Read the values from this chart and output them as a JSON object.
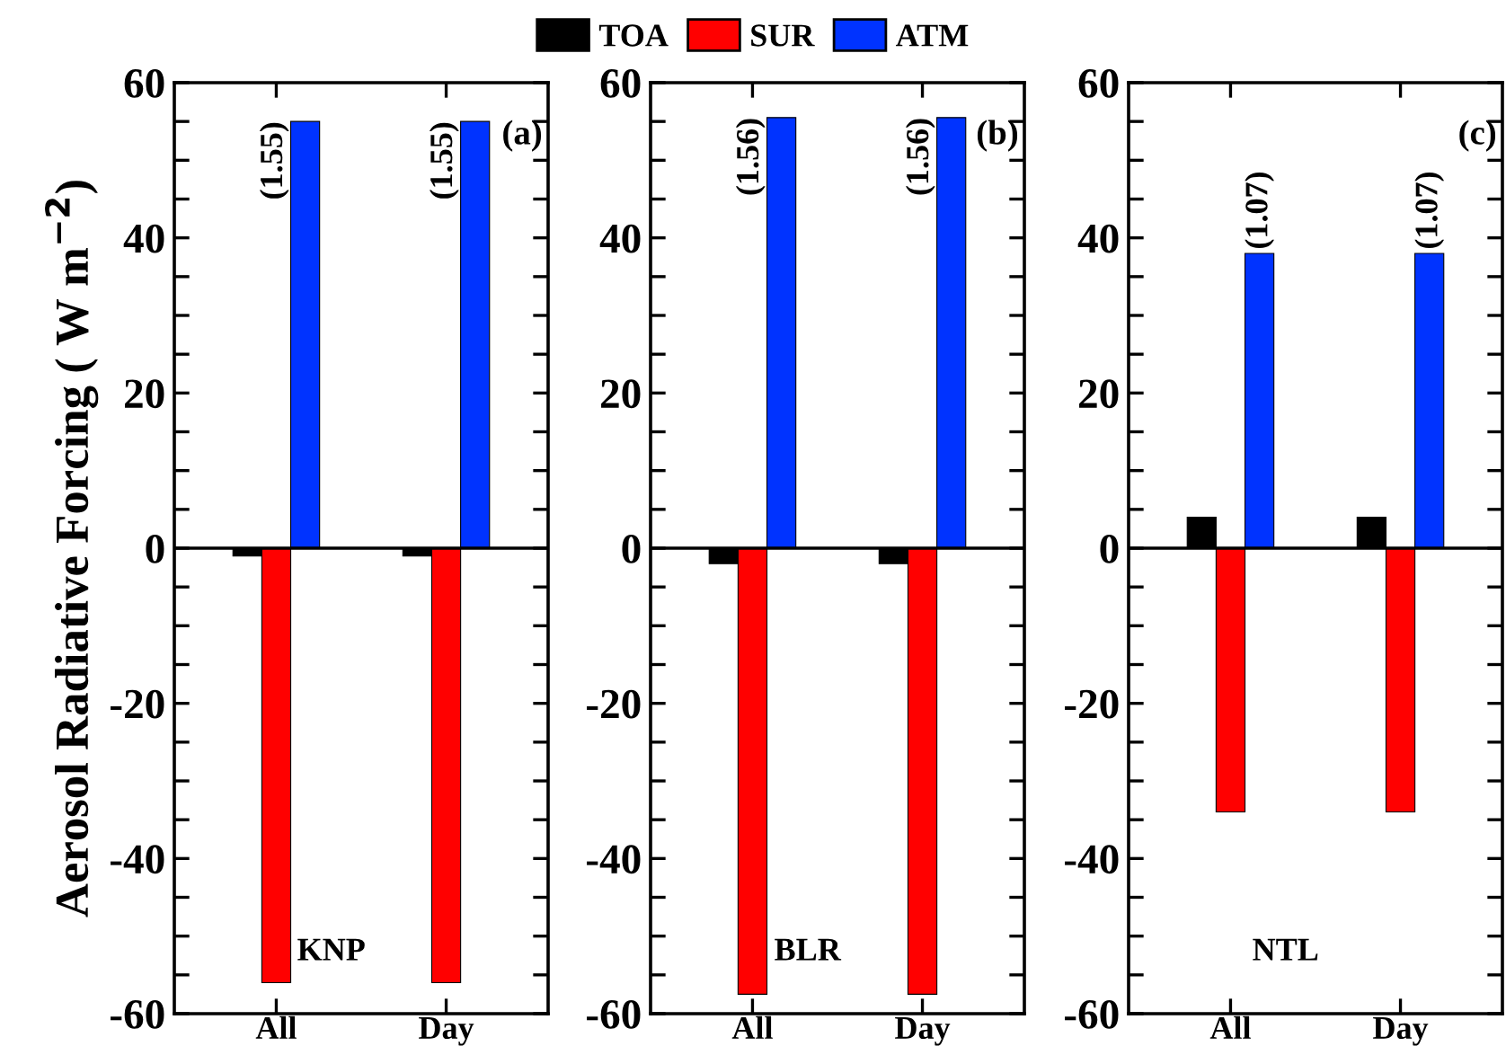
{
  "chart_data": [
    {
      "type": "bar",
      "ylabel": "Aerosol Radiative Forcing ( W m$^{−2}$)",
      "categories": [
        "All",
        "Day"
      ],
      "legend": "top",
      "series": [
        {
          "name": "TOA",
          "color": "#000000",
          "values": [
            -1,
            -1
          ]
        },
        {
          "name": "SUR",
          "color": "#ff0000",
          "values": [
            -56,
            -56
          ]
        },
        {
          "name": "ATM",
          "color": "#0033ff",
          "values": [
            55,
            55
          ]
        }
      ],
      "ylim": [
        -60,
        60
      ],
      "yticks": [
        -60,
        {
          "value": -55,
          "label": null
        },
        {
          "value": -50,
          "label": null
        },
        {
          "value": -45,
          "label": null
        },
        -40,
        {
          "value": -35,
          "label": null
        },
        {
          "value": -30,
          "label": null
        },
        {
          "value": -25,
          "label": null
        },
        -20,
        {
          "value": -15,
          "label": null
        },
        {
          "value": -10,
          "label": null
        },
        {
          "value": -5,
          "label": null
        },
        0,
        {
          "value": 5,
          "label": null
        },
        {
          "value": 10,
          "label": null
        },
        {
          "value": 15,
          "label": null
        },
        20,
        {
          "value": 25,
          "label": null
        },
        {
          "value": 30,
          "label": null
        },
        {
          "value": 35,
          "label": null
        },
        40,
        {
          "value": 45,
          "label": null
        },
        {
          "value": 50,
          "label": null
        },
        {
          "value": 55,
          "label": null
        },
        60
      ],
      "ref_lines": [
        {
          "axis": "y",
          "value": 0,
          "color": "#000000"
        }
      ],
      "annotations": [
        "(a)",
        "KNP",
        "(1.55)",
        "(1.55)"
      ]
    },
    {
      "type": "bar",
      "categories": [
        "All",
        "Day"
      ],
      "series": [
        {
          "color": "#000000",
          "values": [
            -2,
            -2
          ]
        },
        {
          "color": "#ff0000",
          "values": [
            -57.5,
            -57.5
          ]
        },
        {
          "color": "#0033ff",
          "values": [
            55.5,
            55.5
          ]
        }
      ],
      "ylim": [
        -60,
        60
      ],
      "yticks": [
        -60,
        {
          "value": -55,
          "label": null
        },
        {
          "value": -50,
          "label": null
        },
        {
          "value": -45,
          "label": null
        },
        -40,
        {
          "value": -35,
          "label": null
        },
        {
          "value": -30,
          "label": null
        },
        {
          "value": -25,
          "label": null
        },
        -20,
        {
          "value": -15,
          "label": null
        },
        {
          "value": -10,
          "label": null
        },
        {
          "value": -5,
          "label": null
        },
        0,
        {
          "value": 5,
          "label": null
        },
        {
          "value": 10,
          "label": null
        },
        {
          "value": 15,
          "label": null
        },
        20,
        {
          "value": 25,
          "label": null
        },
        {
          "value": 30,
          "label": null
        },
        {
          "value": 35,
          "label": null
        },
        40,
        {
          "value": 45,
          "label": null
        },
        {
          "value": 50,
          "label": null
        },
        {
          "value": 55,
          "label": null
        },
        60
      ],
      "ref_lines": [
        {
          "axis": "y",
          "value": 0,
          "color": "#000000"
        }
      ],
      "annotations": [
        "(b)",
        "BLR",
        "(1.56)",
        "(1.56)"
      ]
    },
    {
      "type": "bar",
      "categories": [
        "All",
        "Day"
      ],
      "series": [
        {
          "color": "#000000",
          "values": [
            4,
            4
          ]
        },
        {
          "color": "#ff0000",
          "values": [
            -34,
            -34
          ]
        },
        {
          "color": "#0033ff",
          "values": [
            38,
            38
          ]
        }
      ],
      "ylim": [
        -60,
        60
      ],
      "yticks": [
        -60,
        {
          "value": -55,
          "label": null
        },
        {
          "value": -50,
          "label": null
        },
        {
          "value": -45,
          "label": null
        },
        -40,
        {
          "value": -35,
          "label": null
        },
        {
          "value": -30,
          "label": null
        },
        {
          "value": -25,
          "label": null
        },
        -20,
        {
          "value": -15,
          "label": null
        },
        {
          "value": -10,
          "label": null
        },
        {
          "value": -5,
          "label": null
        },
        0,
        {
          "value": 5,
          "label": null
        },
        {
          "value": 10,
          "label": null
        },
        {
          "value": 15,
          "label": null
        },
        20,
        {
          "value": 25,
          "label": null
        },
        {
          "value": 30,
          "label": null
        },
        {
          "value": 35,
          "label": null
        },
        40,
        {
          "value": 45,
          "label": null
        },
        {
          "value": 50,
          "label": null
        },
        {
          "value": 55,
          "label": null
        },
        60
      ],
      "ref_lines": [
        {
          "axis": "y",
          "value": 0,
          "color": "#000000"
        }
      ],
      "annotations": [
        "(c)",
        "NTL",
        "(1.07)",
        "(1.07)"
      ]
    }
  ]
}
